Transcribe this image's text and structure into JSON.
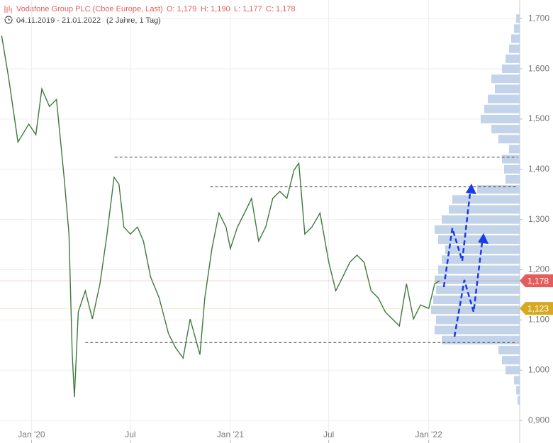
{
  "chart_data": {
    "type": "line",
    "title": "Vodafone Group PLC (Cboe Europe, Last)",
    "ohlc": [
      "O: 1,179",
      "H: 1,190",
      "L: 1,177",
      "C: 1,178"
    ],
    "date_range": "04.11.2019 - 21.01.2022",
    "period": "(2 Jahre, 1 Tag)",
    "xlim": [
      "04.11.2019",
      "21.01.2022"
    ],
    "xticks": [
      {
        "value": "01.01.2020",
        "label": "Jan '20"
      },
      {
        "value": "01.07.2020",
        "label": "Jul"
      },
      {
        "value": "01.01.2021",
        "label": "Jan '21"
      },
      {
        "value": "01.07.2021",
        "label": "Jul"
      },
      {
        "value": "01.01.2022",
        "label": "Jan '22"
      }
    ],
    "ylim": [
      855,
      1737
    ],
    "yticks": [
      {
        "value": 900,
        "label": "0,900"
      },
      {
        "value": 1000,
        "label": "1,000"
      },
      {
        "value": 1100,
        "label": "1,100"
      },
      {
        "value": 1200,
        "label": "1,200"
      },
      {
        "value": 1300,
        "label": "1,300"
      },
      {
        "value": 1400,
        "label": "1,400"
      },
      {
        "value": 1500,
        "label": "1,500"
      },
      {
        "value": 1600,
        "label": "1,600"
      },
      {
        "value": 1700,
        "label": "1,700"
      }
    ],
    "grid": true,
    "series": [
      {
        "color": "#3d7a3d",
        "x": [
          "07.11.2019",
          "20.11.2019",
          "07.12.2019",
          "27.12.2019",
          "09.01.2020",
          "20.01.2020",
          "03.02.2020",
          "16.02.2020",
          "01.03.2020",
          "10.03.2020",
          "16.03.2020",
          "20.03.2020",
          "27.03.2020",
          "09.04.2020",
          "22.04.2020",
          "06.05.2020",
          "19.05.2020",
          "01.06.2020",
          "10.06.2020",
          "19.06.2020",
          "01.07.2020",
          "14.07.2020",
          "25.07.2020",
          "07.08.2020",
          "23.08.2020",
          "09.09.2020",
          "22.09.2020",
          "06.10.2020",
          "19.10.2020",
          "06.11.2020",
          "15.11.2020",
          "28.11.2020",
          "11.12.2020",
          "24.12.2020",
          "01.01.2021",
          "14.01.2021",
          "27.01.2021",
          "09.02.2021",
          "22.02.2021",
          "07.03.2021",
          "20.03.2021",
          "02.04.2021",
          "15.04.2021",
          "28.04.2021",
          "07.05.2021",
          "18.05.2021",
          "31.05.2021",
          "15.06.2021",
          "01.07.2021",
          "14.07.2021",
          "27.07.2021",
          "09.08.2021",
          "22.08.2021",
          "04.09.2021",
          "17.09.2021",
          "30.09.2021",
          "13.10.2021",
          "26.10.2021",
          "08.11.2021",
          "21.11.2021",
          "04.12.2021",
          "17.12.2021",
          "01.01.2022",
          "12.01.2022",
          "21.01.2022"
        ],
        "values": [
          1666,
          1581,
          1454,
          1490,
          1469,
          1560,
          1525,
          1539,
          1384,
          1271,
          1031,
          947,
          1116,
          1158,
          1102,
          1172,
          1271,
          1384,
          1370,
          1285,
          1271,
          1285,
          1257,
          1186,
          1144,
          1073,
          1045,
          1024,
          1102,
          1031,
          1144,
          1242,
          1313,
          1285,
          1242,
          1285,
          1313,
          1342,
          1257,
          1285,
          1342,
          1356,
          1342,
          1398,
          1412,
          1271,
          1285,
          1313,
          1215,
          1158,
          1186,
          1215,
          1229,
          1215,
          1158,
          1144,
          1116,
          1102,
          1088,
          1172,
          1102,
          1130,
          1123,
          1172,
          1178
        ]
      }
    ],
    "levels": [
      1424,
      1365,
      1055
    ],
    "level_starts": [
      "02.06.2020",
      "25.11.2020",
      "09.04.2020"
    ],
    "volume_profile": {
      "color": "#b9cde6",
      "prices": [
        940,
        960,
        980,
        1000,
        1020,
        1040,
        1060,
        1080,
        1100,
        1120,
        1140,
        1160,
        1180,
        1200,
        1220,
        1240,
        1260,
        1280,
        1300,
        1320,
        1340,
        1360,
        1380,
        1400,
        1420,
        1440,
        1460,
        1480,
        1500,
        1520,
        1540,
        1560,
        1580,
        1600,
        1620,
        1640,
        1660,
        1680,
        1700
      ],
      "values": [
        3,
        5,
        8,
        20,
        25,
        30,
        110,
        120,
        118,
        125,
        122,
        118,
        120,
        115,
        110,
        105,
        115,
        120,
        110,
        100,
        95,
        60,
        20,
        22,
        25,
        15,
        30,
        40,
        55,
        50,
        45,
        35,
        40,
        25,
        20,
        15,
        12,
        8,
        5
      ]
    },
    "price_tags": [
      {
        "value": 1178,
        "label": "1,178",
        "color": "#e35d5d"
      },
      {
        "value": 1123,
        "label": "1,123",
        "color": "#d6a91f"
      }
    ]
  }
}
